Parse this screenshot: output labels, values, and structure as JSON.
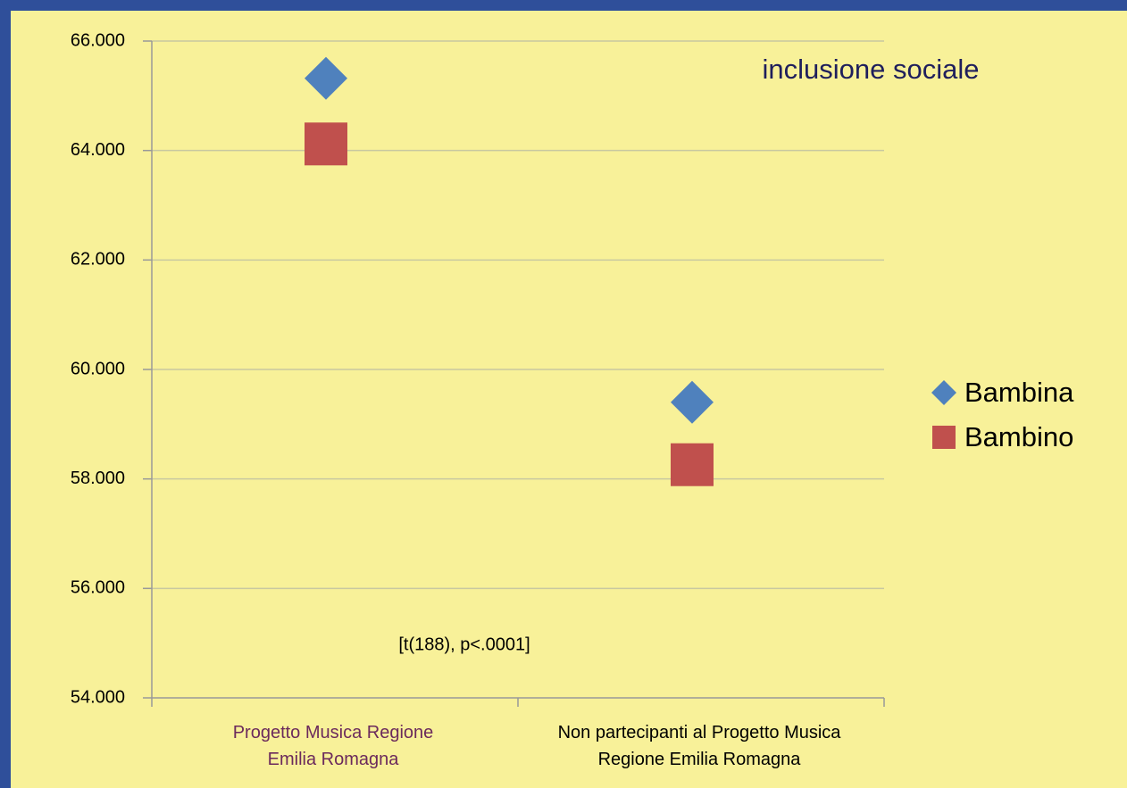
{
  "chart_data": {
    "type": "scatter",
    "title": "inclusione sociale",
    "annotation": "[t(188), p<.0001]",
    "categories": [
      "Progetto Musica Regione Emilia Romagna",
      "Non partecipanti al Progetto Musica Regione Emilia Romagna"
    ],
    "series": [
      {
        "name": "Bambina",
        "color": "#4f81bd",
        "marker": "diamond",
        "values": [
          65.32,
          59.4
        ]
      },
      {
        "name": "Bambino",
        "color": "#c0504d",
        "marker": "square",
        "values": [
          64.12,
          58.26
        ]
      }
    ],
    "ylim": [
      54,
      66
    ],
    "yticks": [
      {
        "value": 54,
        "label": "54.000"
      },
      {
        "value": 56,
        "label": "56.000"
      },
      {
        "value": 58,
        "label": "58.000"
      },
      {
        "value": 60,
        "label": "60.000"
      },
      {
        "value": 62,
        "label": "62.000"
      },
      {
        "value": 64,
        "label": "64.000"
      },
      {
        "value": 66,
        "label": "66.000"
      }
    ],
    "grid": true,
    "legend": "right"
  }
}
